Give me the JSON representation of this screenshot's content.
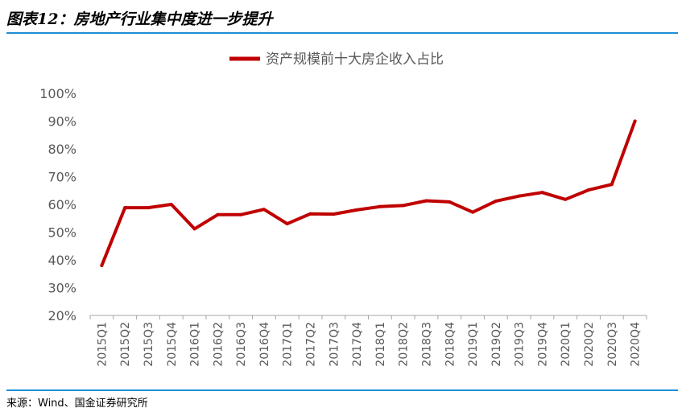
{
  "header": {
    "title": "图表12：房地产行业集中度进一步提升"
  },
  "footer": {
    "source": "来源：Wind、国金证券研究所"
  },
  "colors": {
    "series": "#c00000",
    "rule": "#1f8fd6",
    "axis": "#a6a6a6",
    "text": "#595959"
  },
  "chart_data": {
    "type": "line",
    "categories": [
      "2015Q1",
      "2015Q2",
      "2015Q3",
      "2015Q4",
      "2016Q1",
      "2016Q2",
      "2016Q3",
      "2016Q4",
      "2017Q1",
      "2017Q2",
      "2017Q3",
      "2017Q4",
      "2018Q1",
      "2018Q2",
      "2018Q3",
      "2018Q4",
      "2019Q1",
      "2019Q2",
      "2019Q3",
      "2019Q4",
      "2020Q1",
      "2020Q2",
      "2020Q3",
      "2020Q4"
    ],
    "series": [
      {
        "name": "资产规模前十大房企收入占比",
        "values": [
          38.0,
          58.8,
          58.8,
          60.0,
          51.2,
          56.3,
          56.3,
          58.2,
          53.0,
          56.6,
          56.5,
          58.0,
          59.2,
          59.6,
          61.3,
          60.9,
          57.2,
          61.2,
          63.0,
          64.3,
          61.8,
          65.2,
          67.2,
          90.0
        ]
      }
    ],
    "y_ticks": [
      "100%",
      "90%",
      "80%",
      "70%",
      "60%",
      "50%",
      "40%",
      "30%",
      "20%"
    ],
    "ylim": [
      20,
      100
    ],
    "legend": "top",
    "grid": false
  }
}
